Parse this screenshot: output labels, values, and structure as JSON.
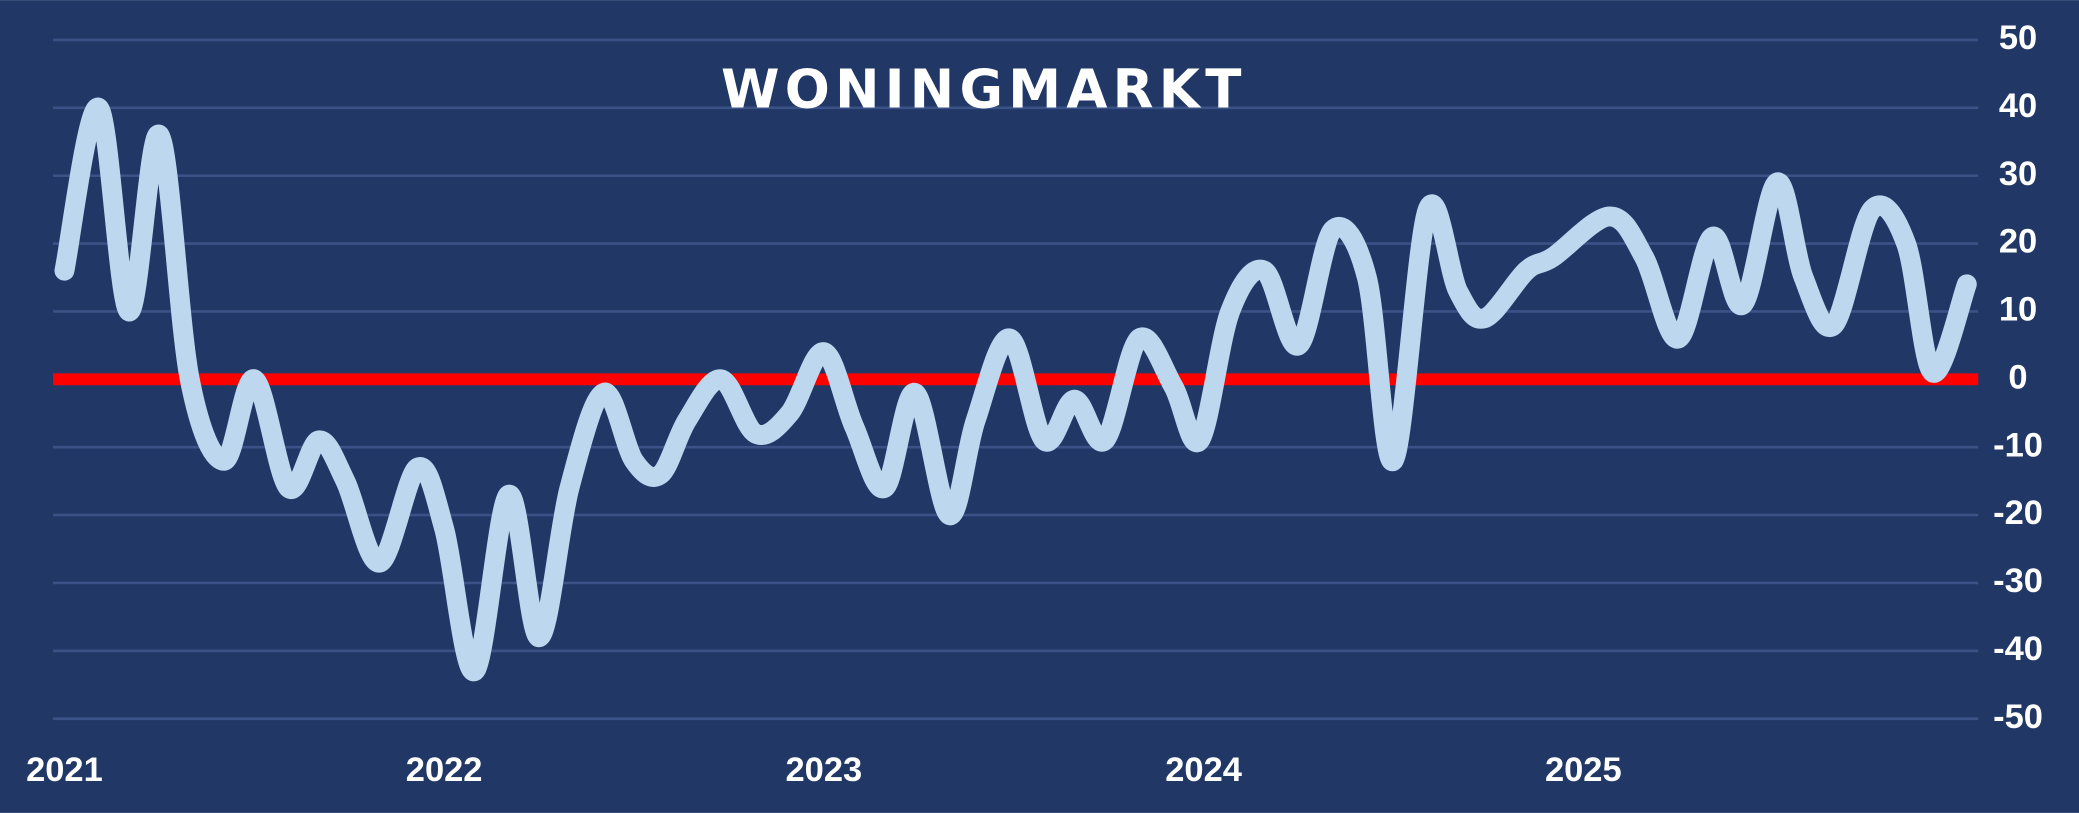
{
  "chart_data": {
    "type": "line",
    "title": "WONINGMARKT",
    "x": [
      2021.0,
      2021.09,
      2021.17,
      2021.25,
      2021.33,
      2021.42,
      2021.5,
      2021.59,
      2021.67,
      2021.74,
      2021.83,
      2021.93,
      2022.0,
      2022.08,
      2022.17,
      2022.25,
      2022.33,
      2022.42,
      2022.5,
      2022.57,
      2022.64,
      2022.73,
      2022.82,
      2022.91,
      2023.0,
      2023.08,
      2023.16,
      2023.24,
      2023.33,
      2023.4,
      2023.49,
      2023.58,
      2023.66,
      2023.74,
      2023.83,
      2023.92,
      2023.99,
      2024.07,
      2024.16,
      2024.25,
      2024.34,
      2024.43,
      2024.5,
      2024.59,
      2024.67,
      2024.74,
      2024.85,
      2024.92,
      2025.07,
      2025.16,
      2025.25,
      2025.34,
      2025.42,
      2025.51,
      2025.58,
      2025.66,
      2025.76,
      2025.85,
      2025.92,
      2026.01
    ],
    "series": [
      {
        "color": "#bdd7ee",
        "values": [
          16,
          40,
          10,
          36,
          0,
          -12,
          0,
          -16,
          -9,
          -15,
          -27,
          -13,
          -22,
          -43,
          -17,
          -38,
          -16,
          -2,
          -12,
          -14,
          -6,
          0,
          -8,
          -5,
          4,
          -7,
          -16,
          -2,
          -20,
          -6,
          6,
          -9,
          -3,
          -9,
          6,
          -1,
          -9,
          10,
          16,
          5,
          22,
          15,
          -12,
          25,
          13,
          9,
          16,
          18,
          24,
          18,
          6,
          21,
          11,
          29,
          15,
          8,
          25,
          20,
          1,
          14
        ]
      }
    ],
    "xlim": [
      2020.97,
      2026.04
    ],
    "xticks": [
      2021,
      2022,
      2023,
      2024,
      2025
    ],
    "ylim": [
      -50,
      50
    ],
    "yticks": [
      -50,
      -40,
      -30,
      -20,
      -10,
      0,
      10,
      20,
      30,
      40,
      50
    ],
    "grid": true,
    "hline": {
      "value": 0,
      "color": "#ff0000"
    },
    "background": "#213766"
  }
}
